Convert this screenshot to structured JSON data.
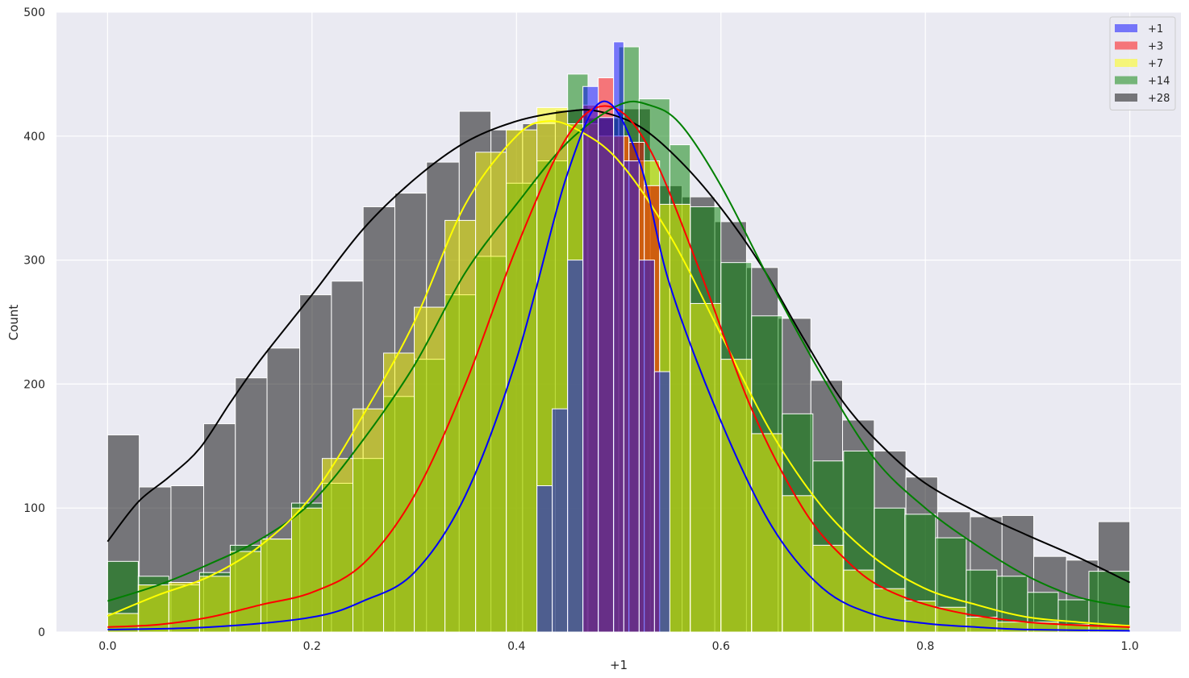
{
  "chart_data": {
    "type": "histogram",
    "xlabel": "+1",
    "ylabel": "Count",
    "xlim": [
      -0.05,
      1.05
    ],
    "ylim": [
      0,
      500
    ],
    "xticks": [
      "0.0",
      "0.2",
      "0.4",
      "0.6",
      "0.8",
      "1.0"
    ],
    "yticks": [
      "0",
      "100",
      "200",
      "300",
      "400",
      "500"
    ],
    "grid": true,
    "legend_position": "top-right",
    "series": [
      {
        "name": "+1",
        "color": "#0000ff",
        "bins": [
          [
            0.42,
            0.435,
            118
          ],
          [
            0.435,
            0.45,
            180
          ],
          [
            0.45,
            0.465,
            300
          ],
          [
            0.465,
            0.48,
            440
          ],
          [
            0.48,
            0.495,
            415
          ],
          [
            0.495,
            0.505,
            476
          ],
          [
            0.505,
            0.52,
            380
          ],
          [
            0.52,
            0.535,
            300
          ],
          [
            0.535,
            0.55,
            210
          ]
        ],
        "kde": [
          [
            0.0,
            2
          ],
          [
            0.1,
            4
          ],
          [
            0.2,
            12
          ],
          [
            0.25,
            25
          ],
          [
            0.3,
            48
          ],
          [
            0.35,
            110
          ],
          [
            0.4,
            220
          ],
          [
            0.45,
            370
          ],
          [
            0.485,
            428
          ],
          [
            0.52,
            380
          ],
          [
            0.55,
            280
          ],
          [
            0.6,
            170
          ],
          [
            0.65,
            85
          ],
          [
            0.7,
            35
          ],
          [
            0.75,
            14
          ],
          [
            0.8,
            7
          ],
          [
            0.85,
            4
          ],
          [
            0.9,
            2
          ],
          [
            1.0,
            1
          ]
        ]
      },
      {
        "name": "+3",
        "color": "#ff0000",
        "bins": [
          [
            0.465,
            0.48,
            425
          ],
          [
            0.48,
            0.495,
            447
          ],
          [
            0.495,
            0.51,
            400
          ],
          [
            0.51,
            0.525,
            395
          ],
          [
            0.525,
            0.54,
            360
          ]
        ],
        "kde": [
          [
            0.0,
            4
          ],
          [
            0.05,
            6
          ],
          [
            0.1,
            12
          ],
          [
            0.15,
            22
          ],
          [
            0.2,
            32
          ],
          [
            0.25,
            55
          ],
          [
            0.3,
            110
          ],
          [
            0.35,
            200
          ],
          [
            0.4,
            310
          ],
          [
            0.45,
            400
          ],
          [
            0.49,
            424
          ],
          [
            0.53,
            390
          ],
          [
            0.58,
            290
          ],
          [
            0.63,
            180
          ],
          [
            0.68,
            100
          ],
          [
            0.72,
            60
          ],
          [
            0.76,
            35
          ],
          [
            0.82,
            18
          ],
          [
            0.9,
            8
          ],
          [
            1.0,
            4
          ]
        ]
      },
      {
        "name": "+7",
        "color": "#ffff00",
        "bins": [
          [
            0.0,
            0.03,
            15
          ],
          [
            0.03,
            0.06,
            38
          ],
          [
            0.06,
            0.09,
            40
          ],
          [
            0.09,
            0.12,
            45
          ],
          [
            0.12,
            0.15,
            65
          ],
          [
            0.15,
            0.18,
            75
          ],
          [
            0.18,
            0.21,
            100
          ],
          [
            0.21,
            0.24,
            140
          ],
          [
            0.24,
            0.27,
            180
          ],
          [
            0.27,
            0.3,
            225
          ],
          [
            0.3,
            0.33,
            262
          ],
          [
            0.33,
            0.36,
            332
          ],
          [
            0.36,
            0.39,
            387
          ],
          [
            0.39,
            0.42,
            405
          ],
          [
            0.42,
            0.45,
            423
          ],
          [
            0.45,
            0.48,
            410
          ],
          [
            0.48,
            0.51,
            400
          ],
          [
            0.51,
            0.54,
            380
          ],
          [
            0.54,
            0.57,
            345
          ],
          [
            0.57,
            0.6,
            265
          ],
          [
            0.6,
            0.63,
            220
          ],
          [
            0.63,
            0.66,
            160
          ],
          [
            0.66,
            0.69,
            110
          ],
          [
            0.69,
            0.72,
            70
          ],
          [
            0.72,
            0.75,
            50
          ],
          [
            0.75,
            0.78,
            35
          ],
          [
            0.78,
            0.81,
            25
          ],
          [
            0.81,
            0.84,
            20
          ],
          [
            0.84,
            0.87,
            12
          ],
          [
            0.87,
            0.9,
            8
          ],
          [
            0.9,
            0.93,
            8
          ],
          [
            0.93,
            0.96,
            6
          ],
          [
            0.96,
            1.0,
            5
          ]
        ],
        "kde": [
          [
            0.0,
            13
          ],
          [
            0.05,
            30
          ],
          [
            0.1,
            45
          ],
          [
            0.15,
            70
          ],
          [
            0.2,
            110
          ],
          [
            0.25,
            175
          ],
          [
            0.3,
            250
          ],
          [
            0.35,
            345
          ],
          [
            0.4,
            400
          ],
          [
            0.43,
            412
          ],
          [
            0.46,
            405
          ],
          [
            0.5,
            380
          ],
          [
            0.55,
            320
          ],
          [
            0.6,
            240
          ],
          [
            0.65,
            160
          ],
          [
            0.7,
            100
          ],
          [
            0.75,
            60
          ],
          [
            0.8,
            35
          ],
          [
            0.85,
            22
          ],
          [
            0.9,
            12
          ],
          [
            0.95,
            8
          ],
          [
            1.0,
            5
          ]
        ]
      },
      {
        "name": "+14",
        "color": "#008000",
        "bins": [
          [
            0.0,
            0.03,
            57
          ],
          [
            0.03,
            0.06,
            45
          ],
          [
            0.06,
            0.09,
            38
          ],
          [
            0.09,
            0.12,
            48
          ],
          [
            0.12,
            0.15,
            70
          ],
          [
            0.15,
            0.18,
            75
          ],
          [
            0.18,
            0.21,
            104
          ],
          [
            0.21,
            0.24,
            120
          ],
          [
            0.24,
            0.27,
            140
          ],
          [
            0.27,
            0.3,
            190
          ],
          [
            0.3,
            0.33,
            220
          ],
          [
            0.33,
            0.36,
            272
          ],
          [
            0.36,
            0.39,
            303
          ],
          [
            0.39,
            0.42,
            362
          ],
          [
            0.42,
            0.45,
            380
          ],
          [
            0.45,
            0.47,
            450
          ],
          [
            0.47,
            0.5,
            415
          ],
          [
            0.5,
            0.52,
            472
          ],
          [
            0.52,
            0.55,
            430
          ],
          [
            0.55,
            0.57,
            393
          ],
          [
            0.57,
            0.6,
            343
          ],
          [
            0.6,
            0.63,
            298
          ],
          [
            0.63,
            0.66,
            255
          ],
          [
            0.66,
            0.69,
            176
          ],
          [
            0.69,
            0.72,
            138
          ],
          [
            0.72,
            0.75,
            146
          ],
          [
            0.75,
            0.78,
            100
          ],
          [
            0.78,
            0.81,
            95
          ],
          [
            0.81,
            0.84,
            76
          ],
          [
            0.84,
            0.87,
            50
          ],
          [
            0.87,
            0.9,
            45
          ],
          [
            0.9,
            0.93,
            32
          ],
          [
            0.93,
            0.96,
            26
          ],
          [
            0.96,
            1.0,
            49
          ]
        ],
        "kde": [
          [
            0.0,
            25
          ],
          [
            0.05,
            38
          ],
          [
            0.1,
            55
          ],
          [
            0.15,
            75
          ],
          [
            0.2,
            105
          ],
          [
            0.25,
            155
          ],
          [
            0.3,
            215
          ],
          [
            0.35,
            290
          ],
          [
            0.4,
            345
          ],
          [
            0.45,
            395
          ],
          [
            0.5,
            425
          ],
          [
            0.53,
            425
          ],
          [
            0.56,
            410
          ],
          [
            0.6,
            360
          ],
          [
            0.65,
            280
          ],
          [
            0.7,
            205
          ],
          [
            0.75,
            140
          ],
          [
            0.8,
            100
          ],
          [
            0.85,
            70
          ],
          [
            0.9,
            45
          ],
          [
            0.95,
            28
          ],
          [
            1.0,
            20
          ]
        ]
      },
      {
        "name": "+28",
        "color": "#000000",
        "bins": [
          [
            0.0,
            0.031,
            159
          ],
          [
            0.031,
            0.062,
            117
          ],
          [
            0.062,
            0.094,
            118
          ],
          [
            0.094,
            0.125,
            168
          ],
          [
            0.125,
            0.156,
            205
          ],
          [
            0.156,
            0.188,
            229
          ],
          [
            0.188,
            0.219,
            272
          ],
          [
            0.219,
            0.25,
            283
          ],
          [
            0.25,
            0.281,
            343
          ],
          [
            0.281,
            0.312,
            354
          ],
          [
            0.312,
            0.344,
            379
          ],
          [
            0.344,
            0.375,
            420
          ],
          [
            0.375,
            0.406,
            405
          ],
          [
            0.406,
            0.438,
            410
          ],
          [
            0.438,
            0.469,
            421
          ],
          [
            0.469,
            0.5,
            414
          ],
          [
            0.5,
            0.531,
            422
          ],
          [
            0.531,
            0.562,
            360
          ],
          [
            0.562,
            0.594,
            351
          ],
          [
            0.594,
            0.625,
            331
          ],
          [
            0.625,
            0.656,
            294
          ],
          [
            0.656,
            0.688,
            253
          ],
          [
            0.688,
            0.719,
            203
          ],
          [
            0.719,
            0.75,
            171
          ],
          [
            0.75,
            0.781,
            146
          ],
          [
            0.781,
            0.812,
            125
          ],
          [
            0.812,
            0.844,
            97
          ],
          [
            0.844,
            0.875,
            93
          ],
          [
            0.875,
            0.906,
            94
          ],
          [
            0.906,
            0.938,
            61
          ],
          [
            0.938,
            0.969,
            58
          ],
          [
            0.969,
            1.0,
            89
          ]
        ],
        "kde": [
          [
            0.0,
            73
          ],
          [
            0.03,
            105
          ],
          [
            0.06,
            125
          ],
          [
            0.09,
            148
          ],
          [
            0.12,
            185
          ],
          [
            0.15,
            220
          ],
          [
            0.2,
            272
          ],
          [
            0.25,
            325
          ],
          [
            0.3,
            365
          ],
          [
            0.35,
            395
          ],
          [
            0.4,
            412
          ],
          [
            0.45,
            420
          ],
          [
            0.48,
            420
          ],
          [
            0.52,
            408
          ],
          [
            0.56,
            380
          ],
          [
            0.6,
            342
          ],
          [
            0.64,
            295
          ],
          [
            0.68,
            238
          ],
          [
            0.72,
            185
          ],
          [
            0.76,
            148
          ],
          [
            0.8,
            120
          ],
          [
            0.85,
            97
          ],
          [
            0.9,
            78
          ],
          [
            0.95,
            60
          ],
          [
            1.0,
            40
          ]
        ]
      }
    ]
  }
}
